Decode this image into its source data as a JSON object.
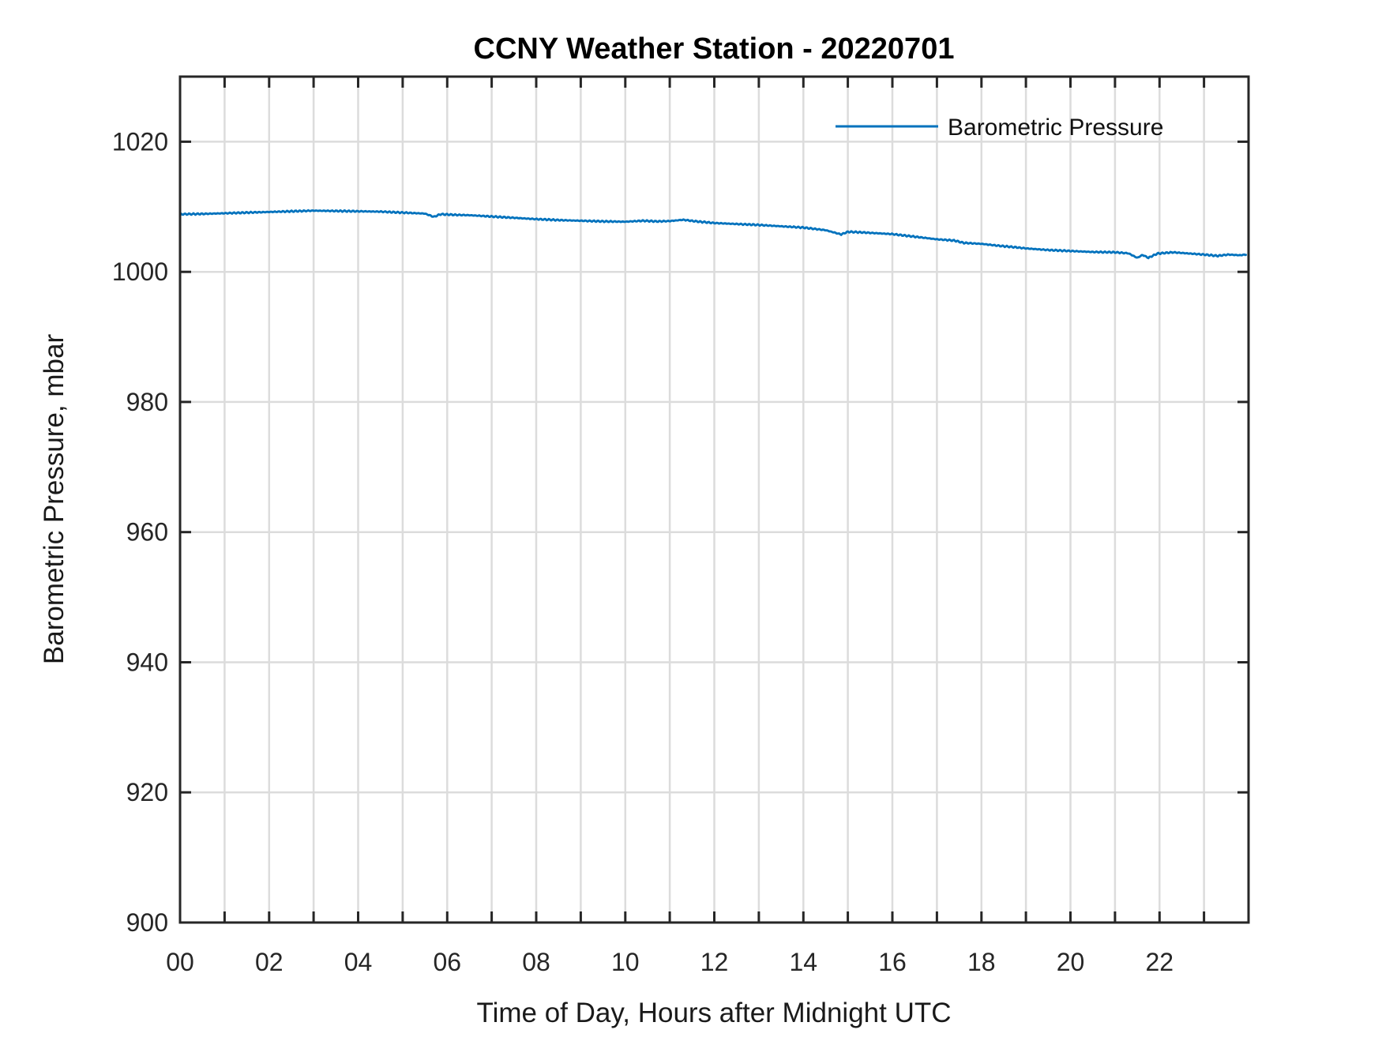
{
  "chart_data": {
    "type": "line",
    "title": "CCNY Weather Station - 20220701",
    "xlabel": "Time of Day, Hours after Midnight UTC",
    "ylabel": "Barometric Pressure, mbar",
    "xlim": [
      0,
      24
    ],
    "ylim": [
      900,
      1030
    ],
    "grid": true,
    "box": true,
    "tick_direction": "in",
    "xtick_interval_hours": 1,
    "xtick_label_hours": [
      0,
      2,
      4,
      6,
      8,
      10,
      12,
      14,
      16,
      18,
      20,
      22
    ],
    "xtick_labels": [
      "00",
      "02",
      "04",
      "06",
      "08",
      "10",
      "12",
      "14",
      "16",
      "18",
      "20",
      "22"
    ],
    "ytick_values": [
      900,
      920,
      940,
      960,
      980,
      1000,
      1020
    ],
    "ytick_labels": [
      "900",
      "920",
      "940",
      "960",
      "980",
      "1000",
      "1020"
    ],
    "legend_position": "northeast-inside",
    "legend_box": false,
    "colors": {
      "line": "#0072BD",
      "grid": "#dcdcdc",
      "axis": "#262626",
      "tick_text": "#262626",
      "title_text": "#000000",
      "label_text": "#1a1a1a",
      "background": "#ffffff"
    },
    "series": [
      {
        "name": "Barometric Pressure",
        "units": "mbar",
        "noise_mbar": 0.12,
        "x_hours": [
          0,
          0.5,
          1,
          1.5,
          2,
          2.5,
          3,
          3.5,
          4,
          4.5,
          5,
          5.5,
          5.7,
          5.85,
          6.2,
          6.5,
          7,
          7.5,
          8,
          8.5,
          9,
          9.5,
          10,
          10.4,
          10.7,
          11,
          11.3,
          11.6,
          12,
          12.5,
          13,
          13.5,
          14,
          14.5,
          14.85,
          15,
          15.2,
          15.6,
          16,
          16.5,
          17,
          17.4,
          17.6,
          18,
          18.4,
          18.8,
          19,
          19.5,
          20,
          20.5,
          21,
          21.3,
          21.5,
          21.62,
          21.75,
          21.95,
          22.3,
          22.6,
          23,
          23.3,
          23.55,
          23.8,
          23.95
        ],
        "y_mbar": [
          1008.85,
          1008.9,
          1009.0,
          1009.1,
          1009.2,
          1009.3,
          1009.4,
          1009.35,
          1009.3,
          1009.25,
          1009.1,
          1008.95,
          1008.45,
          1008.85,
          1008.75,
          1008.7,
          1008.5,
          1008.3,
          1008.1,
          1007.95,
          1007.85,
          1007.75,
          1007.7,
          1007.85,
          1007.75,
          1007.8,
          1008.0,
          1007.75,
          1007.5,
          1007.35,
          1007.2,
          1007.0,
          1006.8,
          1006.4,
          1005.75,
          1006.15,
          1006.1,
          1005.95,
          1005.8,
          1005.4,
          1005.0,
          1004.8,
          1004.45,
          1004.3,
          1004.0,
          1003.75,
          1003.6,
          1003.35,
          1003.2,
          1003.05,
          1003.0,
          1002.85,
          1002.15,
          1002.6,
          1002.15,
          1002.8,
          1003.0,
          1002.85,
          1002.65,
          1002.45,
          1002.65,
          1002.55,
          1002.65
        ]
      }
    ]
  }
}
